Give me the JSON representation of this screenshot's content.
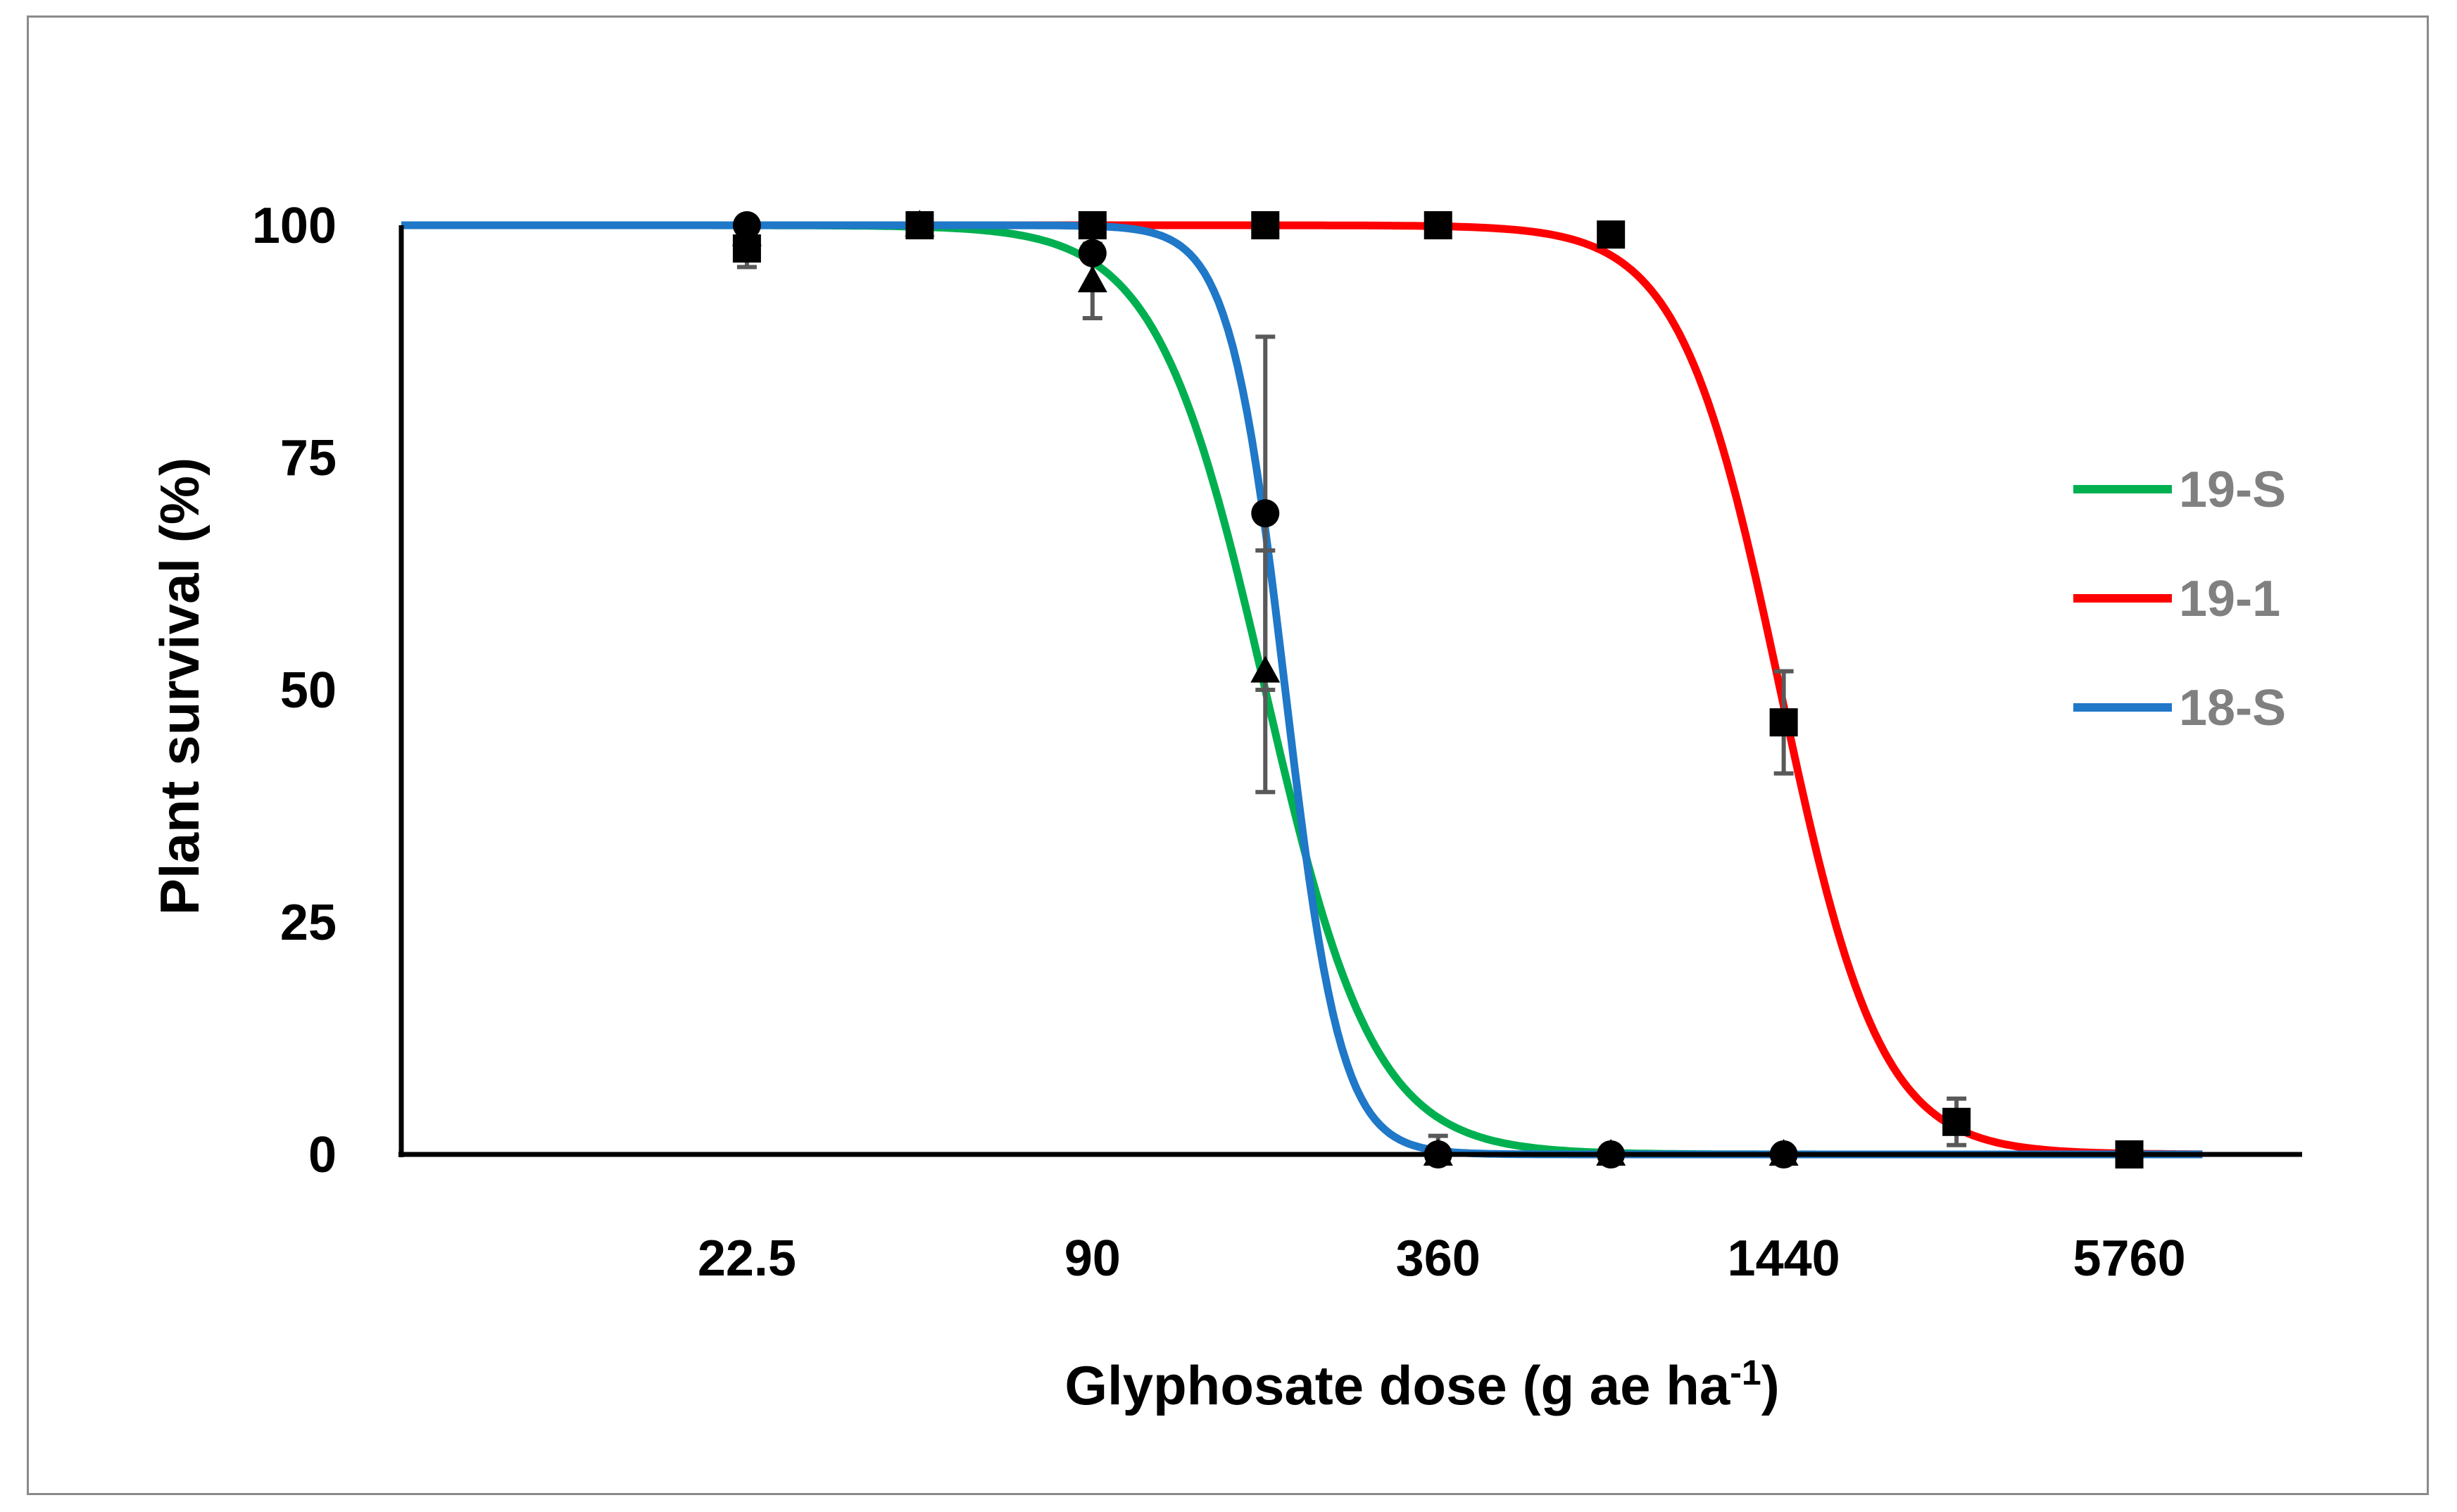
{
  "chart_data": {
    "type": "line",
    "title": "",
    "xlabel": "Glyphosate dose (g ae ha",
    "xlabel_superscript": "-1",
    "xlabel_suffix": ")",
    "ylabel": "Plant survival (%)",
    "x_scale": "log",
    "xlim": [
      5.625,
      11520
    ],
    "ylim": [
      0,
      100
    ],
    "x_ticks": [
      22.5,
      90,
      360,
      1440,
      5760
    ],
    "x_tick_labels": [
      "22.5",
      "90",
      "360",
      "1440",
      "5760"
    ],
    "y_ticks": [
      0,
      25,
      50,
      75,
      100
    ],
    "y_tick_labels": [
      "0",
      "25",
      "50",
      "75",
      "100"
    ],
    "grid": false,
    "legend_position": "right",
    "series": [
      {
        "name": "19-S",
        "color": "#00b050",
        "marker": "triangle",
        "curve": {
          "upper": 100,
          "ed50": 180,
          "slope": 4.6
        },
        "points": [
          {
            "x": 22.5,
            "y": 99,
            "err": 2
          },
          {
            "x": 45,
            "y": 100,
            "err": 0
          },
          {
            "x": 90,
            "y": 94,
            "err": 4
          },
          {
            "x": 180,
            "y": 52,
            "err": 13
          },
          {
            "x": 360,
            "y": 0,
            "err": 0
          },
          {
            "x": 720,
            "y": 0,
            "err": 0
          },
          {
            "x": 1440,
            "y": 0,
            "err": 0
          }
        ]
      },
      {
        "name": "19-1",
        "color": "#ff0000",
        "marker": "square",
        "curve": {
          "upper": 100,
          "ed50": 1420,
          "slope": 5.0
        },
        "points": [
          {
            "x": 22.5,
            "y": 97.5,
            "err": 2
          },
          {
            "x": 45,
            "y": 100,
            "err": 0
          },
          {
            "x": 90,
            "y": 100,
            "err": 0
          },
          {
            "x": 180,
            "y": 100,
            "err": 0
          },
          {
            "x": 360,
            "y": 100,
            "err": 0
          },
          {
            "x": 720,
            "y": 99,
            "err": 0
          },
          {
            "x": 1440,
            "y": 46.5,
            "err": 5.5
          },
          {
            "x": 2880,
            "y": 3.5,
            "err": 2.5
          },
          {
            "x": 5760,
            "y": 0,
            "err": 0
          }
        ]
      },
      {
        "name": "18-S",
        "color": "#1f78c8",
        "marker": "circle",
        "curve": {
          "upper": 100,
          "ed50": 195,
          "slope": 9.0
        },
        "points": [
          {
            "x": 22.5,
            "y": 100,
            "err": 0
          },
          {
            "x": 45,
            "y": 100,
            "err": 0
          },
          {
            "x": 90,
            "y": 97,
            "err": 0
          },
          {
            "x": 180,
            "y": 69,
            "err": 19
          },
          {
            "x": 360,
            "y": 0,
            "err": 2
          },
          {
            "x": 720,
            "y": 0,
            "err": 0
          },
          {
            "x": 1440,
            "y": 0,
            "err": 0
          }
        ]
      }
    ]
  },
  "colors": {
    "axis": "#000000",
    "marker": "#000000",
    "error_bar": "#595959",
    "legend_text": "#808080",
    "frame": "#8a8a8a"
  }
}
